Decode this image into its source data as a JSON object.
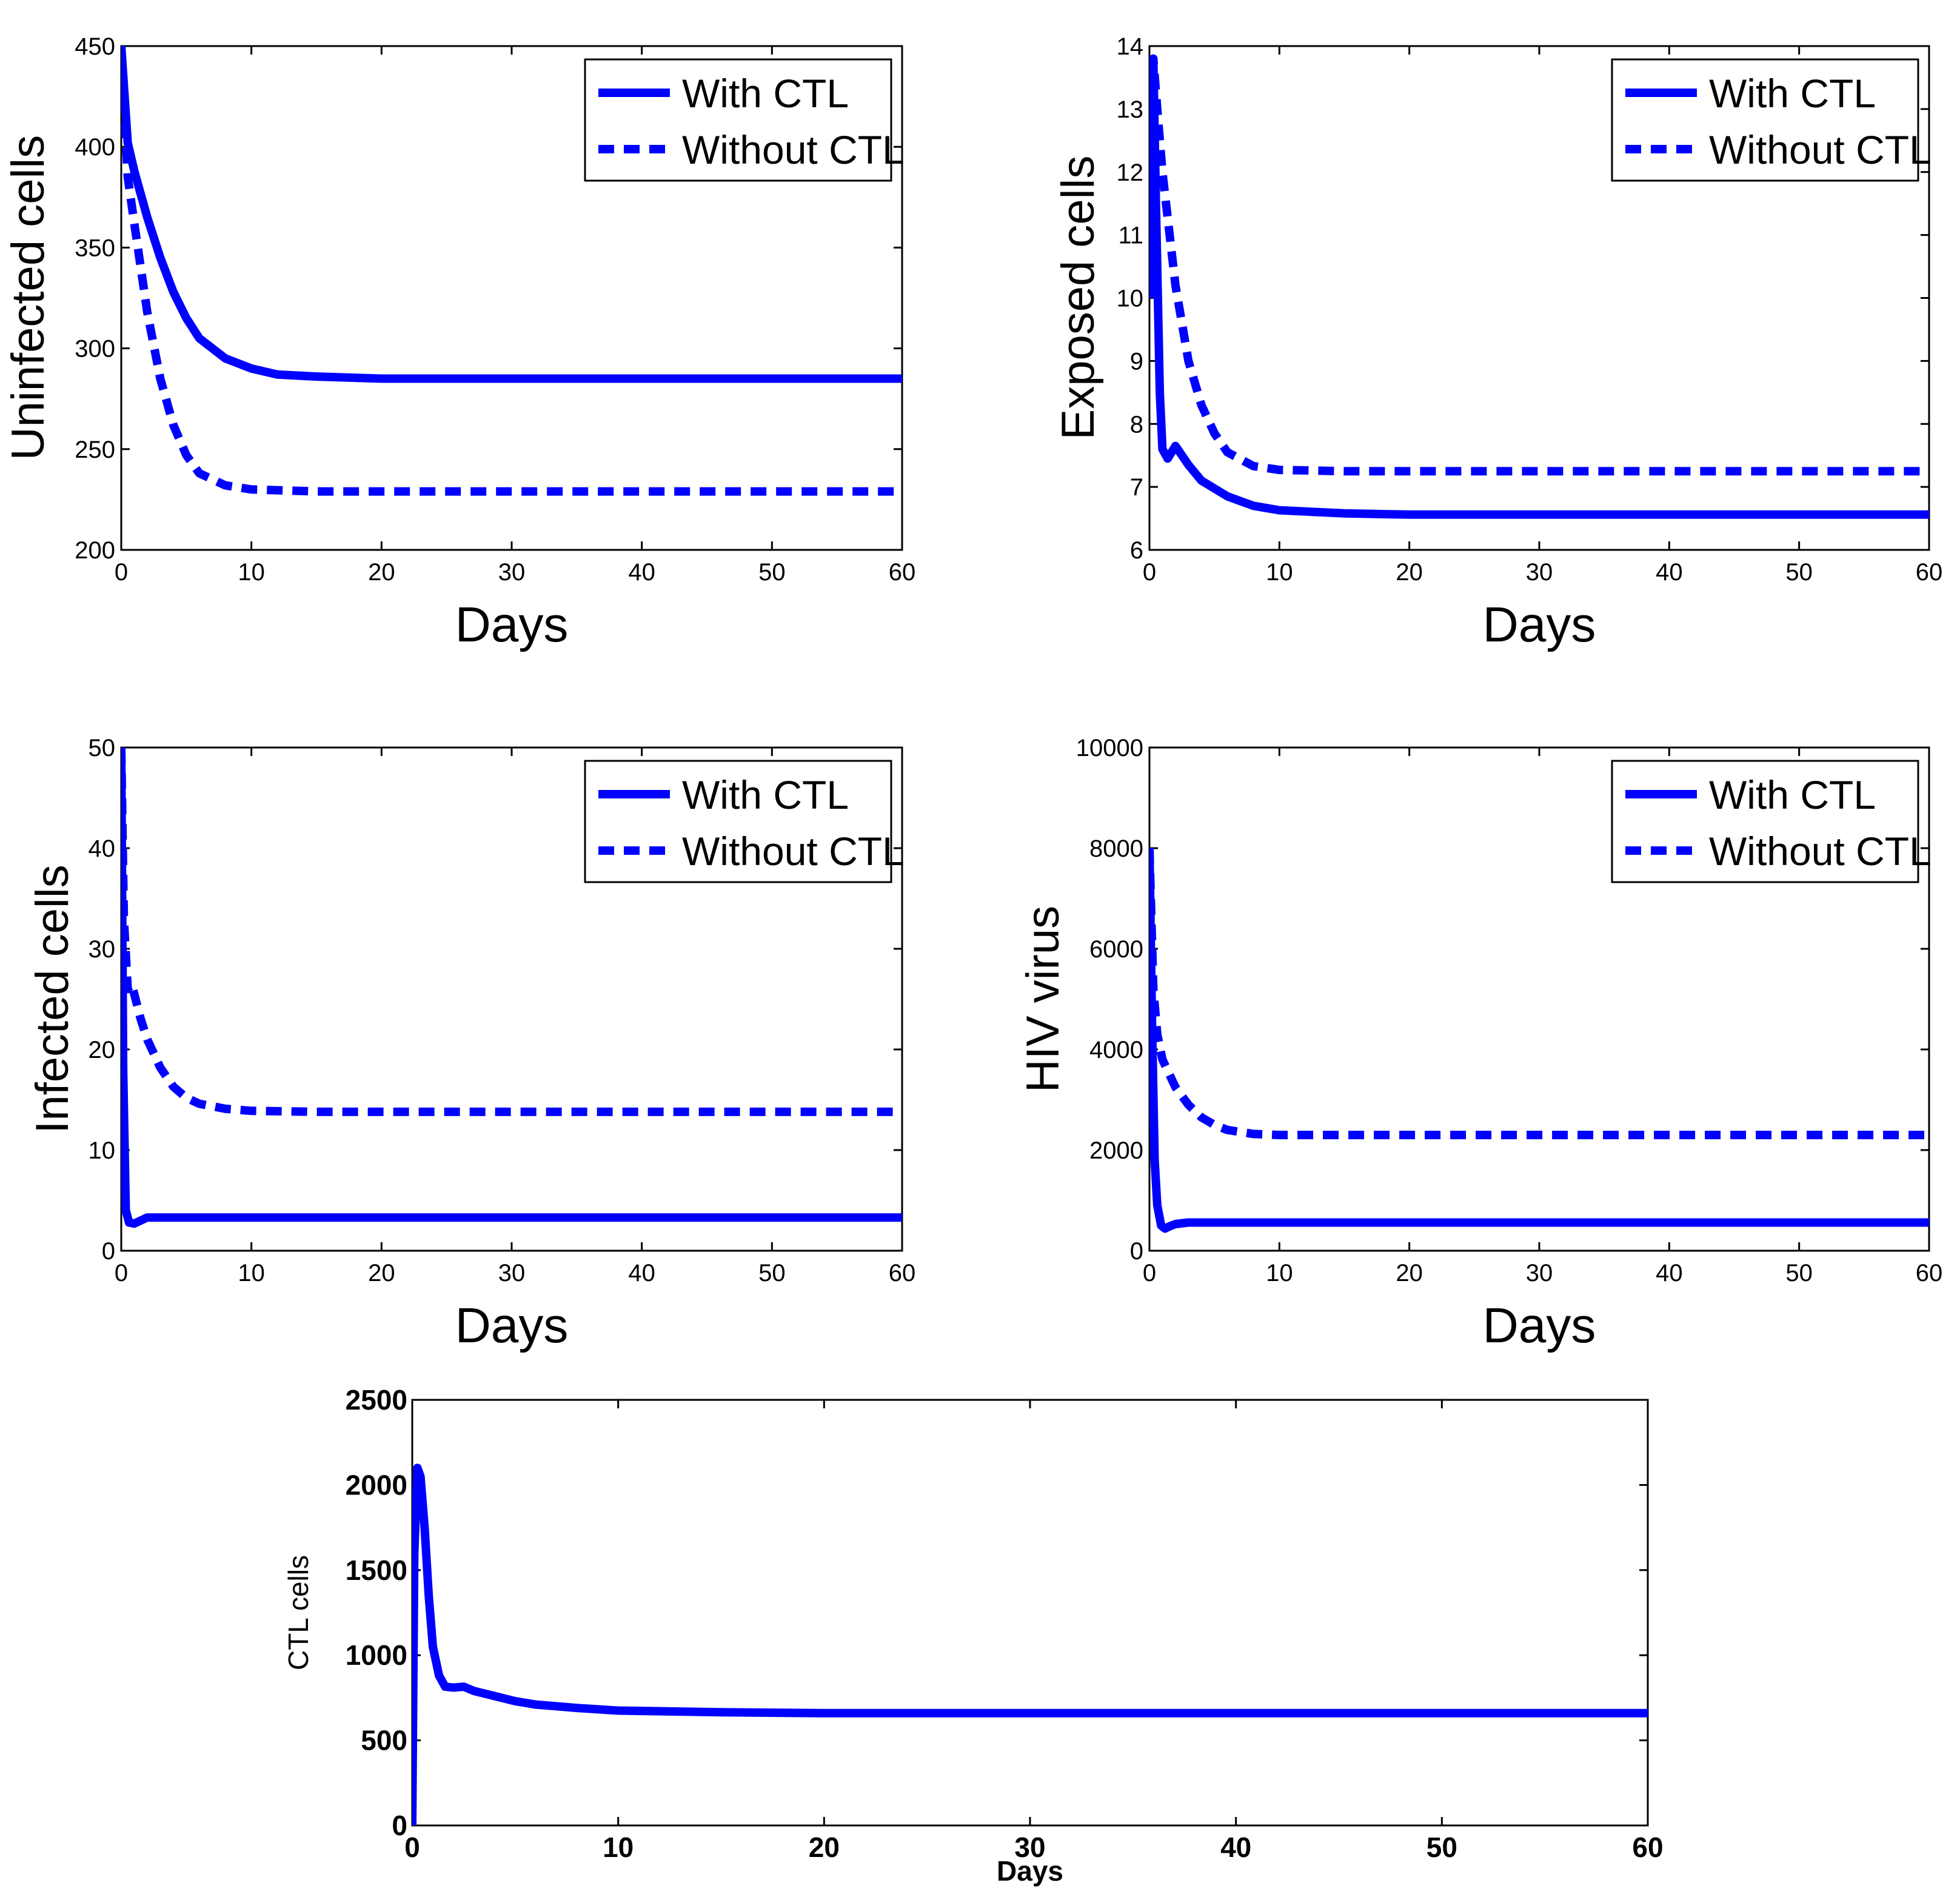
{
  "chart_data": [
    {
      "type": "line",
      "xlabel": "Days",
      "ylabel": "Uninfected cells",
      "xlim": [
        0,
        60
      ],
      "ylim": [
        200,
        450
      ],
      "x_ticks": [
        "0",
        "10",
        "20",
        "30",
        "40",
        "50",
        "60"
      ],
      "y_ticks": [
        "200",
        "250",
        "300",
        "350",
        "400",
        "450"
      ],
      "legend": {
        "position": "top-right"
      },
      "series": [
        {
          "name": "With CTL",
          "style": "solid",
          "color": "#0000ff",
          "x": [
            0,
            0.5,
            1,
            2,
            3,
            4,
            5,
            6,
            8,
            10,
            12,
            15,
            20,
            30,
            40,
            50,
            60
          ],
          "y": [
            450,
            402,
            388,
            365,
            345,
            328,
            315,
            305,
            295,
            290,
            287,
            286,
            285,
            285,
            285,
            285,
            285
          ]
        },
        {
          "name": "Without CTL",
          "style": "dashed",
          "color": "#0000ff",
          "x": [
            0,
            0.5,
            1,
            2,
            3,
            4,
            5,
            6,
            8,
            10,
            15,
            20,
            30,
            40,
            50,
            60
          ],
          "y": [
            450,
            385,
            362,
            318,
            285,
            262,
            247,
            238,
            232,
            230,
            229,
            229,
            229,
            229,
            229,
            229
          ]
        }
      ]
    },
    {
      "type": "line",
      "xlabel": "Days",
      "ylabel": "Exposed cells",
      "xlim": [
        0,
        60
      ],
      "ylim": [
        6,
        14
      ],
      "x_ticks": [
        "0",
        "10",
        "20",
        "30",
        "40",
        "50",
        "60"
      ],
      "y_ticks": [
        "6",
        "7",
        "8",
        "9",
        "10",
        "11",
        "12",
        "13",
        "14"
      ],
      "legend": {
        "position": "top-right"
      },
      "series": [
        {
          "name": "With CTL",
          "style": "solid",
          "color": "#0000ff",
          "x": [
            0,
            0.3,
            0.5,
            0.8,
            1.0,
            1.4,
            2.0,
            3,
            4,
            6,
            8,
            10,
            15,
            20,
            30,
            40,
            50,
            60
          ],
          "y": [
            10,
            13.8,
            11.5,
            8.5,
            7.6,
            7.45,
            7.65,
            7.35,
            7.1,
            6.85,
            6.7,
            6.63,
            6.58,
            6.56,
            6.56,
            6.56,
            6.56,
            6.56
          ]
        },
        {
          "name": "Without CTL",
          "style": "dashed",
          "color": "#0000ff",
          "x": [
            0,
            0.3,
            0.6,
            1,
            2,
            3,
            4,
            5,
            6,
            8,
            10,
            15,
            20,
            30,
            40,
            50,
            60
          ],
          "y": [
            10,
            13.8,
            13.0,
            12.0,
            10.2,
            9.0,
            8.3,
            7.85,
            7.55,
            7.33,
            7.27,
            7.25,
            7.25,
            7.25,
            7.25,
            7.25,
            7.25
          ]
        }
      ]
    },
    {
      "type": "line",
      "xlabel": "Days",
      "ylabel": "Infected cells",
      "xlim": [
        0,
        60
      ],
      "ylim": [
        0,
        50
      ],
      "x_ticks": [
        "0",
        "10",
        "20",
        "30",
        "40",
        "50",
        "60"
      ],
      "y_ticks": [
        "0",
        "10",
        "20",
        "30",
        "40",
        "50"
      ],
      "legend": {
        "position": "top-right"
      },
      "series": [
        {
          "name": "With CTL",
          "style": "solid",
          "color": "#0000ff",
          "x": [
            0,
            0.15,
            0.35,
            0.6,
            1.0,
            1.5,
            2.0,
            3,
            5,
            10,
            20,
            30,
            40,
            50,
            60
          ],
          "y": [
            50,
            18,
            4,
            2.8,
            2.7,
            3.0,
            3.3,
            3.3,
            3.3,
            3.3,
            3.3,
            3.3,
            3.3,
            3.3,
            3.3
          ]
        },
        {
          "name": "Without CTL",
          "style": "dashed",
          "color": "#0000ff",
          "x": [
            0,
            0.2,
            0.5,
            0.8,
            1.5,
            2,
            3,
            4,
            5,
            6,
            8,
            10,
            15,
            20,
            30,
            40,
            50,
            60
          ],
          "y": [
            50,
            33,
            26,
            26.5,
            23,
            21,
            18.2,
            16.3,
            15.2,
            14.6,
            14.1,
            13.9,
            13.8,
            13.8,
            13.8,
            13.8,
            13.8,
            13.8
          ]
        }
      ]
    },
    {
      "type": "line",
      "xlabel": "Days",
      "ylabel": "HIV virus",
      "xlim": [
        0,
        60
      ],
      "ylim": [
        0,
        10000
      ],
      "x_ticks": [
        "0",
        "10",
        "20",
        "30",
        "40",
        "50",
        "60"
      ],
      "y_ticks": [
        "0",
        "2000",
        "4000",
        "6000",
        "8000",
        "10000"
      ],
      "legend": {
        "position": "top-right"
      },
      "series": [
        {
          "name": "With CTL",
          "style": "solid",
          "color": "#0000ff",
          "x": [
            0,
            0.2,
            0.4,
            0.6,
            0.9,
            1.2,
            1.6,
            2.0,
            3,
            5,
            10,
            20,
            30,
            40,
            50,
            60
          ],
          "y": [
            8000,
            4500,
            1800,
            900,
            500,
            440,
            490,
            530,
            560,
            560,
            560,
            560,
            560,
            560,
            560,
            560
          ]
        },
        {
          "name": "Without CTL",
          "style": "dashed",
          "color": "#0000ff",
          "x": [
            0,
            0.3,
            0.6,
            1,
            2,
            3,
            4,
            5,
            6,
            8,
            10,
            15,
            20,
            30,
            40,
            50,
            60
          ],
          "y": [
            8000,
            5200,
            4300,
            3800,
            3250,
            2900,
            2650,
            2500,
            2400,
            2320,
            2300,
            2300,
            2300,
            2300,
            2300,
            2300,
            2300
          ]
        }
      ]
    },
    {
      "type": "line",
      "xlabel": "Days",
      "ylabel": "CTL cells",
      "xlim": [
        0,
        60
      ],
      "ylim": [
        0,
        2500
      ],
      "x_ticks": [
        "0",
        "10",
        "20",
        "30",
        "40",
        "50",
        "60"
      ],
      "y_ticks": [
        "0",
        "500",
        "1000",
        "1500",
        "2000",
        "2500"
      ],
      "series": [
        {
          "style": "solid",
          "color": "#0000ff",
          "x": [
            0,
            0.1,
            0.25,
            0.4,
            0.6,
            0.8,
            1.0,
            1.3,
            1.6,
            2.0,
            2.5,
            3,
            4,
            5,
            6,
            8,
            10,
            15,
            20,
            30,
            40,
            50,
            60
          ],
          "y": [
            0,
            1600,
            2100,
            2050,
            1750,
            1350,
            1050,
            880,
            815,
            810,
            815,
            790,
            760,
            730,
            710,
            690,
            675,
            665,
            660,
            660,
            660,
            660,
            660
          ]
        }
      ]
    }
  ]
}
